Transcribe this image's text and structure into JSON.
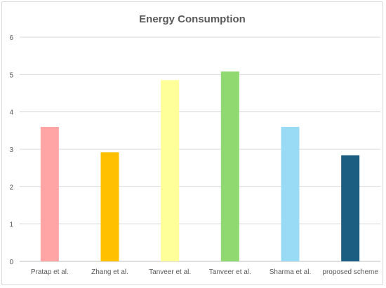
{
  "chart_data": {
    "type": "bar",
    "title": "Energy Consumption",
    "xlabel": "",
    "ylabel": "",
    "categories": [
      "Pratap et al.",
      "Zhang et al.",
      "Tanveer et al.",
      "Tanveer et al.",
      "Sharma et al.",
      "proposed scheme"
    ],
    "values": [
      3.6,
      2.92,
      4.85,
      5.08,
      3.6,
      2.84
    ],
    "colors": [
      "#FFA5A5",
      "#FFC000",
      "#FFFF99",
      "#8FD970",
      "#99DBF5",
      "#1B5E82"
    ],
    "ylim": [
      0,
      6
    ],
    "yticks": [
      "0",
      "1",
      "2",
      "3",
      "4",
      "5",
      "6"
    ],
    "grid": true,
    "legend": "none"
  }
}
